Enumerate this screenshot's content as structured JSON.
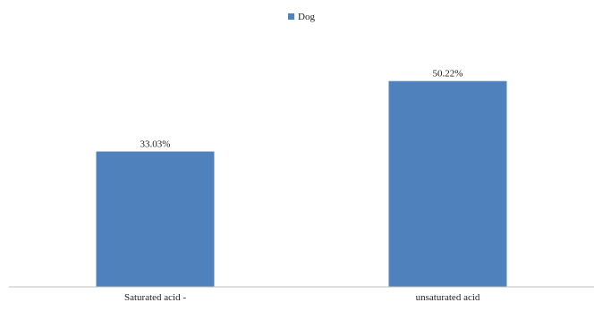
{
  "chart_data": {
    "type": "bar",
    "categories": [
      "Saturated acid -",
      "unsaturated acid"
    ],
    "series": [
      {
        "name": "Dog",
        "values": [
          33.03,
          50.22
        ],
        "labels": [
          "33.03%",
          "50.22%"
        ],
        "color": "#4F81BD"
      }
    ],
    "ylim": [
      0,
      70
    ],
    "grid": false,
    "legend_position": "top-center",
    "axis_color": "#bfbfbf"
  }
}
